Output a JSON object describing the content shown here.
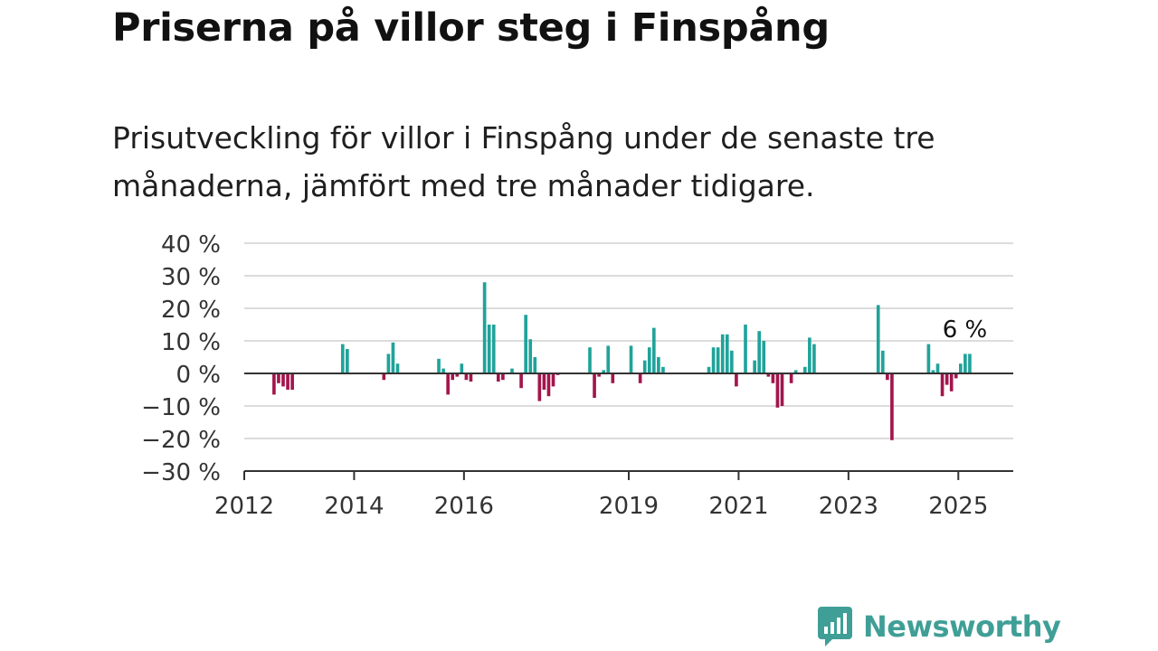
{
  "header": {
    "title": "Priserna på villor steg i Finspång",
    "subtitle": "Prisutveckling för villor i Finspång under de senaste tre månaderna, jämfört med tre månader tidigare."
  },
  "brand": {
    "name": "Newsworthy",
    "icon": "newsworthy-logo-icon",
    "color": "#3f9f96"
  },
  "chart_data": {
    "type": "bar",
    "title": "",
    "xlabel": "",
    "ylabel": "",
    "ylim": [
      -30,
      40
    ],
    "yticks": [
      40,
      30,
      20,
      10,
      0,
      -10,
      -20,
      -30
    ],
    "ytick_labels": [
      "40 %",
      "30 %",
      "20 %",
      "10 %",
      "0 %",
      "−10 %",
      "−20 %",
      "−30 %"
    ],
    "xlim": [
      "2012-01",
      "2025-12"
    ],
    "xticks": [
      "2012-01",
      "2014-01",
      "2016-01",
      "2019-01",
      "2021-01",
      "2023-01",
      "2025-01"
    ],
    "xtick_labels": [
      "2012",
      "2014",
      "2016",
      "2019",
      "2021",
      "2023",
      "2025"
    ],
    "grid": true,
    "colors": {
      "positive": "#1fa39a",
      "negative": "#a3154c",
      "grid": "#dcdcdc",
      "axis": "#333333"
    },
    "annotation": {
      "text": "6 %",
      "x": "2025-04"
    },
    "x": [
      "2012-07",
      "2012-08",
      "2012-09",
      "2012-10",
      "2012-11",
      "2013-10",
      "2013-11",
      "2014-07",
      "2014-08",
      "2014-09",
      "2014-10",
      "2015-07",
      "2015-08",
      "2015-09",
      "2015-10",
      "2015-11",
      "2015-12",
      "2016-01",
      "2016-02",
      "2016-05",
      "2016-06",
      "2016-07",
      "2016-08",
      "2016-09",
      "2016-11",
      "2017-01",
      "2017-02",
      "2017-03",
      "2017-04",
      "2017-05",
      "2017-06",
      "2017-07",
      "2017-08",
      "2017-09",
      "2018-04",
      "2018-05",
      "2018-06",
      "2018-07",
      "2018-08",
      "2018-09",
      "2019-01",
      "2019-03",
      "2019-04",
      "2019-05",
      "2019-06",
      "2019-07",
      "2019-08",
      "2020-06",
      "2020-07",
      "2020-08",
      "2020-09",
      "2020-10",
      "2020-11",
      "2020-12",
      "2021-02",
      "2021-04",
      "2021-05",
      "2021-06",
      "2021-07",
      "2021-08",
      "2021-09",
      "2021-10",
      "2021-12",
      "2022-01",
      "2022-03",
      "2022-04",
      "2022-05",
      "2023-07",
      "2023-08",
      "2023-09",
      "2023-10",
      "2024-06",
      "2024-07",
      "2024-08",
      "2024-09",
      "2024-10",
      "2024-11",
      "2024-12",
      "2025-01",
      "2025-02",
      "2025-03"
    ],
    "values": [
      -6.5,
      -3,
      -4,
      -5,
      -5,
      9,
      7.5,
      -2,
      6,
      9.5,
      3,
      4.5,
      1.5,
      -6.5,
      -2,
      -1,
      3,
      -2,
      -2.5,
      28,
      15,
      15,
      -2.5,
      -2,
      1.5,
      -4.5,
      18,
      10.5,
      5,
      -8.5,
      -5,
      -7,
      -4,
      -0.5,
      8,
      -7.5,
      -1,
      1,
      8.5,
      -3,
      8.5,
      -3,
      4,
      8,
      14,
      5,
      2,
      2,
      8,
      8,
      12,
      12,
      7,
      -4,
      15,
      4,
      13,
      10,
      -1,
      -3,
      -10.5,
      -10,
      -3,
      1,
      2,
      11,
      9,
      21,
      7,
      -2,
      -20.5,
      9,
      1,
      3,
      -7,
      -3.5,
      -5.5,
      -1.5,
      3,
      6,
      6
    ]
  }
}
